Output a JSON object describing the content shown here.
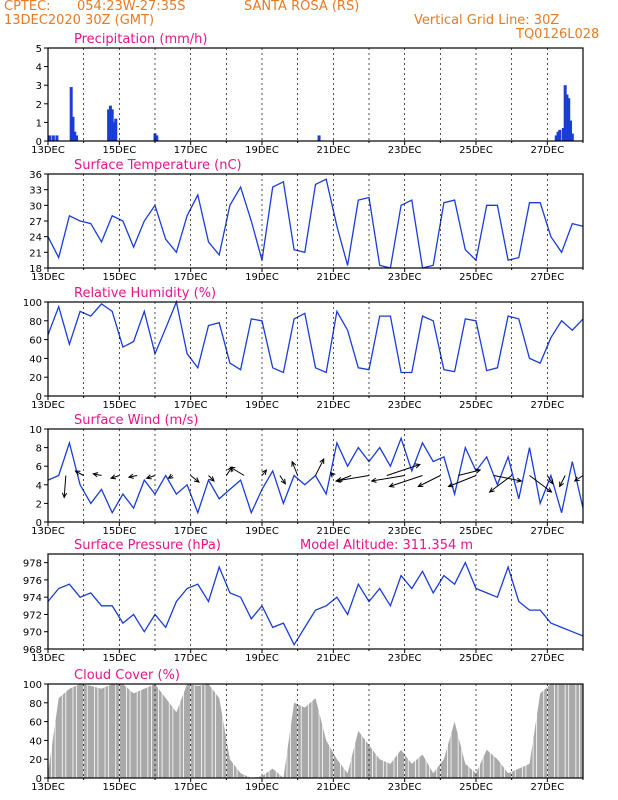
{
  "header": {
    "source": "CPTEC:",
    "coords": "054:23W-27:35S",
    "location": "SANTA ROSA (RS)",
    "run": "13DEC2020 30Z (GMT)",
    "vgrid": "Vertical Grid Line: 30Z",
    "code": "TQ0126L028"
  },
  "colors": {
    "header": "#e87a22",
    "title": "#e8158a",
    "line": "#1a3dd6",
    "bar": "#1a3dd6",
    "cloud": "#a9a9a9"
  },
  "chart_data": [
    {
      "type": "bar",
      "title": "Precipitation (mm/h)",
      "ylim": [
        0,
        5
      ],
      "yticks": [
        0,
        1,
        2,
        3,
        4,
        5
      ],
      "xticks": [
        "13DEC",
        "15DEC",
        "17DEC",
        "19DEC",
        "21DEC",
        "23DEC",
        "25DEC",
        "27DEC"
      ],
      "x_start": "13DEC2020 30Z",
      "x_end": "28DEC2020",
      "series": [
        {
          "day": [
            13.05,
            13.15,
            13.25,
            13.65,
            13.7,
            13.75,
            13.8,
            14.7,
            14.75,
            14.8,
            14.85,
            14.9,
            16.0,
            16.05,
            20.6,
            27.25,
            27.3,
            27.35,
            27.45,
            27.5,
            27.55,
            27.6,
            27.65,
            27.7
          ],
          "value": [
            0.3,
            0.3,
            0.3,
            2.9,
            1.3,
            0.5,
            0.3,
            1.7,
            1.9,
            1.7,
            1.0,
            1.2,
            0.4,
            0.3,
            0.3,
            0.3,
            0.5,
            0.6,
            0.7,
            3.0,
            2.5,
            2.3,
            1.1,
            0.4
          ]
        }
      ]
    },
    {
      "type": "line",
      "title": "Surface Temperature (nC)",
      "ylim": [
        18,
        36
      ],
      "yticks": [
        18,
        21,
        24,
        27,
        30,
        33,
        36
      ],
      "xticks": [
        "13DEC",
        "15DEC",
        "17DEC",
        "19DEC",
        "21DEC",
        "23DEC",
        "25DEC",
        "27DEC"
      ],
      "day": [
        13.0,
        13.3,
        13.6,
        13.9,
        14.2,
        14.5,
        14.8,
        15.1,
        15.4,
        15.7,
        16.0,
        16.3,
        16.6,
        16.9,
        17.2,
        17.5,
        17.8,
        18.1,
        18.4,
        18.7,
        19.0,
        19.3,
        19.6,
        19.9,
        20.2,
        20.5,
        20.8,
        21.1,
        21.4,
        21.7,
        22.0,
        22.3,
        22.6,
        22.9,
        23.2,
        23.5,
        23.8,
        24.1,
        24.4,
        24.7,
        25.0,
        25.3,
        25.6,
        25.9,
        26.2,
        26.5,
        26.8,
        27.1,
        27.4,
        27.7,
        28.0
      ],
      "values": [
        24.0,
        20.0,
        28.0,
        27.0,
        26.5,
        23.0,
        28.0,
        27.0,
        22.0,
        27.0,
        30.0,
        23.5,
        21.0,
        28.0,
        32.0,
        23.0,
        20.5,
        30.0,
        33.5,
        27.0,
        19.5,
        33.5,
        34.5,
        21.5,
        21.0,
        34.0,
        35.0,
        26.0,
        18.5,
        31.0,
        31.5,
        18.5,
        18.0,
        30.0,
        31.0,
        18.0,
        18.5,
        30.5,
        31.0,
        21.5,
        19.5,
        30.0,
        30.0,
        19.5,
        20.0,
        30.5,
        30.5,
        24.0,
        21.0,
        26.5,
        26.0
      ]
    },
    {
      "type": "line",
      "title": "Relative Humidity (%)",
      "ylim": [
        0,
        100
      ],
      "yticks": [
        0,
        20,
        40,
        60,
        80,
        100
      ],
      "xticks": [
        "13DEC",
        "15DEC",
        "17DEC",
        "19DEC",
        "21DEC",
        "23DEC",
        "25DEC",
        "27DEC"
      ],
      "day": [
        13.0,
        13.3,
        13.6,
        13.9,
        14.2,
        14.5,
        14.8,
        15.1,
        15.4,
        15.7,
        16.0,
        16.3,
        16.6,
        16.9,
        17.2,
        17.5,
        17.8,
        18.1,
        18.4,
        18.7,
        19.0,
        19.3,
        19.6,
        19.9,
        20.2,
        20.5,
        20.8,
        21.1,
        21.4,
        21.7,
        22.0,
        22.3,
        22.6,
        22.9,
        23.2,
        23.5,
        23.8,
        24.1,
        24.4,
        24.7,
        25.0,
        25.3,
        25.6,
        25.9,
        26.2,
        26.5,
        26.8,
        27.1,
        27.4,
        27.7,
        28.0
      ],
      "values": [
        65,
        95,
        55,
        90,
        85,
        98,
        90,
        52,
        58,
        90,
        45,
        72,
        100,
        45,
        30,
        75,
        78,
        35,
        28,
        82,
        80,
        30,
        25,
        82,
        88,
        30,
        25,
        90,
        70,
        30,
        28,
        85,
        85,
        25,
        25,
        85,
        80,
        28,
        26,
        82,
        80,
        27,
        30,
        85,
        82,
        40,
        35,
        62,
        80,
        70,
        82
      ]
    },
    {
      "type": "line",
      "title": "Surface Wind (m/s)",
      "ylim": [
        0,
        10
      ],
      "yticks": [
        0,
        2,
        4,
        6,
        8,
        10
      ],
      "xticks": [
        "13DEC",
        "15DEC",
        "17DEC",
        "19DEC",
        "21DEC",
        "23DEC",
        "25DEC",
        "27DEC"
      ],
      "day": [
        13.0,
        13.3,
        13.6,
        13.9,
        14.2,
        14.5,
        14.8,
        15.1,
        15.4,
        15.7,
        16.0,
        16.3,
        16.6,
        16.9,
        17.2,
        17.5,
        17.8,
        18.1,
        18.4,
        18.7,
        19.0,
        19.3,
        19.6,
        19.9,
        20.2,
        20.5,
        20.8,
        21.1,
        21.4,
        21.7,
        22.0,
        22.3,
        22.6,
        22.9,
        23.2,
        23.5,
        23.8,
        24.1,
        24.4,
        24.7,
        25.0,
        25.3,
        25.6,
        25.9,
        26.2,
        26.5,
        26.8,
        27.1,
        27.4,
        27.7,
        28.0
      ],
      "values": [
        4.5,
        5.0,
        8.5,
        4.0,
        2.0,
        3.5,
        1.0,
        3.0,
        1.5,
        4.5,
        3.0,
        5.0,
        3.0,
        4.0,
        1.0,
        4.5,
        2.5,
        3.5,
        4.5,
        1.0,
        3.5,
        5.5,
        2.0,
        5.0,
        4.0,
        5.0,
        3.0,
        8.5,
        6.0,
        8.0,
        6.5,
        8.0,
        6.0,
        9.0,
        5.5,
        8.5,
        6.5,
        7.0,
        3.0,
        8.0,
        5.5,
        7.0,
        4.0,
        7.0,
        2.5,
        8.0,
        2.0,
        5.0,
        1.0,
        6.5,
        1.5
      ],
      "vectors": {
        "day": [
          13.5,
          14.0,
          14.5,
          15.0,
          15.5,
          16.0,
          16.5,
          17.0,
          17.5,
          18.0,
          18.5,
          19.0,
          19.5,
          20.0,
          20.5,
          21.0,
          21.5,
          22.0,
          22.5,
          23.0,
          23.5,
          24.0,
          24.5,
          25.0,
          25.5,
          26.0,
          26.5,
          27.0,
          27.5,
          28.0
        ],
        "u": [
          -0.3,
          -1.5,
          -1.5,
          -1.5,
          -1.5,
          -1.5,
          -0.8,
          1.5,
          1.0,
          1.0,
          -2.5,
          0.8,
          1.0,
          -1.0,
          1.5,
          -0.5,
          -2.5,
          -6.0,
          6.0,
          -6.0,
          -6.0,
          -4.0,
          4.0,
          -5.0,
          5.0,
          -4.0,
          4.0,
          1.0,
          -1.0,
          -1.5
        ],
        "v": [
          -4.0,
          0.8,
          0.3,
          -0.5,
          -0.3,
          -0.5,
          -0.5,
          -1.2,
          -1.0,
          1.5,
          1.5,
          1.0,
          -1.5,
          2.5,
          3.0,
          0.5,
          -1.0,
          -1.0,
          2.0,
          -1.0,
          -2.0,
          -2.0,
          1.0,
          -2.0,
          -1.0,
          -3.0,
          -3.0,
          -1.5,
          -2.0,
          -1.0
        ]
      }
    },
    {
      "type": "line",
      "title": "Surface Pressure (hPa)",
      "subtitle": "Model Altitude: 311.354 m",
      "ylim": [
        968,
        979
      ],
      "yticks": [
        968,
        970,
        972,
        974,
        976,
        978
      ],
      "xticks": [
        "13DEC",
        "15DEC",
        "17DEC",
        "19DEC",
        "21DEC",
        "23DEC",
        "25DEC",
        "27DEC"
      ],
      "day": [
        13.0,
        13.3,
        13.6,
        13.9,
        14.2,
        14.5,
        14.8,
        15.1,
        15.4,
        15.7,
        16.0,
        16.3,
        16.6,
        16.9,
        17.2,
        17.5,
        17.8,
        18.1,
        18.4,
        18.7,
        19.0,
        19.3,
        19.6,
        19.9,
        20.2,
        20.5,
        20.8,
        21.1,
        21.4,
        21.7,
        22.0,
        22.3,
        22.6,
        22.9,
        23.2,
        23.5,
        23.8,
        24.1,
        24.4,
        24.7,
        25.0,
        25.3,
        25.6,
        25.9,
        26.2,
        26.5,
        26.8,
        27.1,
        27.4,
        27.7,
        28.0
      ],
      "values": [
        973.5,
        975.0,
        975.5,
        974.0,
        974.5,
        973.0,
        973.0,
        971.0,
        972.0,
        970.0,
        972.0,
        970.5,
        973.5,
        975.0,
        975.5,
        973.5,
        977.5,
        974.5,
        974.0,
        971.5,
        973.0,
        970.5,
        971.0,
        968.5,
        970.5,
        972.5,
        973.0,
        974.0,
        972.0,
        975.5,
        973.5,
        975.0,
        973.0,
        976.5,
        975.0,
        977.0,
        974.5,
        976.5,
        975.5,
        978.0,
        975.0,
        974.5,
        974.0,
        977.5,
        973.5,
        972.5,
        972.5,
        971.0,
        970.5,
        970.0,
        969.5
      ]
    },
    {
      "type": "area",
      "title": "Cloud Cover (%)",
      "ylim": [
        0,
        100
      ],
      "yticks": [
        0,
        20,
        40,
        60,
        80,
        100
      ],
      "xticks": [
        "13DEC",
        "15DEC",
        "17DEC",
        "19DEC",
        "21DEC",
        "23DEC",
        "25DEC",
        "27DEC"
      ],
      "day": [
        13.0,
        13.3,
        13.6,
        13.9,
        14.2,
        14.5,
        14.8,
        15.1,
        15.4,
        15.7,
        16.0,
        16.3,
        16.6,
        16.9,
        17.2,
        17.5,
        17.8,
        18.1,
        18.4,
        18.7,
        19.0,
        19.3,
        19.6,
        19.9,
        20.2,
        20.5,
        20.8,
        21.1,
        21.4,
        21.7,
        22.0,
        22.3,
        22.6,
        22.9,
        23.2,
        23.5,
        23.8,
        24.1,
        24.4,
        24.7,
        25.0,
        25.3,
        25.6,
        25.9,
        26.2,
        26.5,
        26.8,
        27.1,
        27.4,
        27.7,
        28.0
      ],
      "values": [
        5,
        85,
        95,
        100,
        98,
        95,
        100,
        100,
        90,
        95,
        100,
        85,
        70,
        100,
        98,
        100,
        85,
        20,
        5,
        0,
        2,
        10,
        0,
        80,
        75,
        85,
        40,
        20,
        5,
        50,
        35,
        20,
        15,
        30,
        15,
        25,
        5,
        20,
        60,
        15,
        5,
        30,
        20,
        5,
        10,
        15,
        90,
        100,
        100,
        100,
        100
      ]
    }
  ]
}
